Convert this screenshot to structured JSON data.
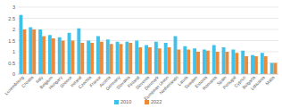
{
  "chart_data": {
    "type": "bar",
    "categories": [
      "Luxembourg",
      "Croatia",
      "Italy",
      "Belgium",
      "Hungary",
      "Greece",
      "Ireland",
      "Czechia",
      "France",
      "Austria",
      "Germany",
      "Slovakia",
      "Finland",
      "Slovenia",
      "Denmark",
      "European Union",
      "Netherlands",
      "Latvia",
      "Sweden",
      "Estonia",
      "Romania",
      "Spain",
      "Portugal",
      "Cyprus",
      "Bulgaria",
      "Lithuania",
      "Malta"
    ],
    "series": [
      {
        "name": "2010",
        "color": "#3fc1ea",
        "values": [
          2.65,
          2.1,
          2.0,
          1.75,
          1.65,
          1.85,
          2.05,
          1.5,
          1.7,
          1.55,
          1.45,
          1.45,
          1.5,
          1.3,
          1.45,
          1.4,
          1.7,
          1.25,
          1.15,
          1.1,
          1.3,
          1.2,
          1.1,
          1.05,
          0.85,
          0.95,
          0.5
        ]
      },
      {
        "name": "2022",
        "color": "#e98b3a",
        "values": [
          2.0,
          2.0,
          1.7,
          1.6,
          1.5,
          1.5,
          1.4,
          1.4,
          1.45,
          1.35,
          1.35,
          1.4,
          1.2,
          1.2,
          1.15,
          1.2,
          1.1,
          1.1,
          1.0,
          1.05,
          1.0,
          1.0,
          0.95,
          0.8,
          0.8,
          0.8,
          0.5
        ]
      }
    ],
    "ylim": [
      0,
      3
    ],
    "yticks": [
      0,
      0.5,
      1,
      1.5,
      2,
      2.5,
      3
    ],
    "grid": true,
    "legend": "bottom"
  }
}
